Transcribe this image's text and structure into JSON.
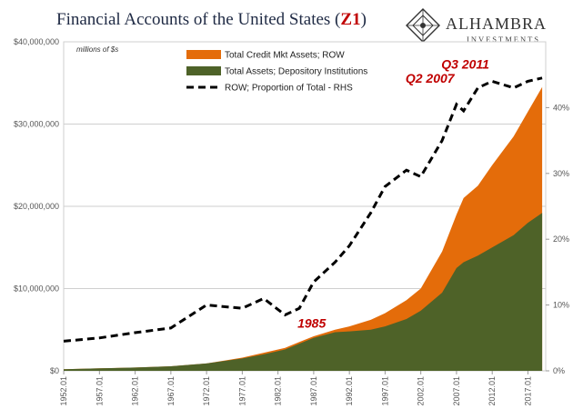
{
  "title": {
    "main": "Financial Accounts of the United States (",
    "accent": "Z1",
    "close": ")"
  },
  "logo": {
    "name": "ALHAMBRA",
    "sub": "INVESTMENTS"
  },
  "chart_data": {
    "type": "area",
    "units_label": "millions of $s",
    "x_tick_labels": [
      "1952.01",
      "1957.01",
      "1962.01",
      "1967.01",
      "1972.01",
      "1977.01",
      "1982.01",
      "1987.01",
      "1992.01",
      "1997.01",
      "2002.01",
      "2007.01",
      "2012.01",
      "2017.01"
    ],
    "y_left": {
      "ticks": [
        "$0",
        "$10,000,000",
        "$20,000,000",
        "$30,000,000",
        "$40,000,000"
      ],
      "range": [
        0,
        40000000
      ]
    },
    "y_right": {
      "ticks": [
        "0%",
        "10%",
        "20%",
        "30%",
        "40%"
      ],
      "range": [
        0,
        50
      ]
    },
    "legend_placement": "top-center",
    "x": [
      1952,
      1957,
      1962,
      1967,
      1972,
      1977,
      1980,
      1983,
      1985,
      1987,
      1990,
      1992,
      1995,
      1997,
      2000,
      2002,
      2005,
      2007,
      2008,
      2010,
      2012,
      2015,
      2017,
      2019
    ],
    "series": [
      {
        "name": "Total Credit Mkt Assets; ROW",
        "axis": "left",
        "color": "#e46c0a",
        "values": [
          200000,
          300000,
          400000,
          550000,
          900000,
          1600000,
          2200000,
          2800000,
          3500000,
          4200000,
          5000000,
          5400000,
          6200000,
          7000000,
          8600000,
          10000000,
          14500000,
          19000000,
          21000000,
          22500000,
          25000000,
          28500000,
          31500000,
          34500000
        ]
      },
      {
        "name": "Total Assets; Depository Institutions",
        "axis": "left",
        "color": "#4e6228",
        "values": [
          200000,
          300000,
          400000,
          550000,
          900000,
          1500000,
          2000000,
          2600000,
          3300000,
          4000000,
          4700000,
          4800000,
          5000000,
          5400000,
          6300000,
          7300000,
          9500000,
          12500000,
          13200000,
          14000000,
          15000000,
          16500000,
          18000000,
          19200000
        ]
      },
      {
        "name": "ROW; Proportion of Total - RHS",
        "axis": "right",
        "color": "#000000",
        "style": "dashed",
        "values": [
          4.5,
          5,
          5.8,
          6.5,
          10,
          9.5,
          11,
          8.5,
          9.5,
          13.5,
          16.5,
          19,
          24,
          28,
          30.5,
          29.5,
          35,
          40.5,
          39.5,
          43,
          44,
          43,
          44,
          44.5
        ]
      }
    ],
    "annotations": [
      {
        "text": "1985",
        "x": 1985,
        "y": 9.3
      },
      {
        "text": "Q2 2007",
        "x": 2007,
        "y": 41
      },
      {
        "text": "Q3 2011",
        "x": 2011,
        "y": 44
      }
    ]
  }
}
